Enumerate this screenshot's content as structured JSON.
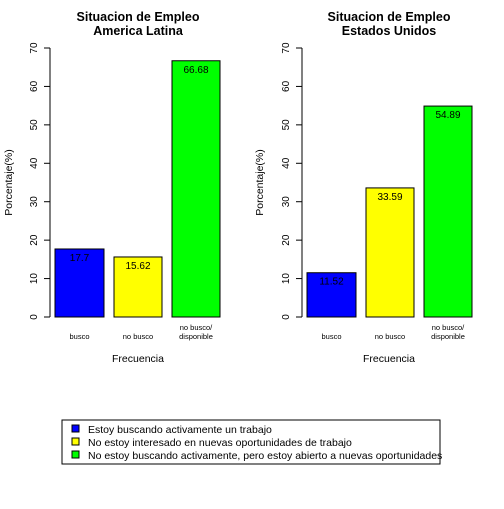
{
  "legend": [
    {
      "label": "Estoy buscando activamente un trabajo",
      "color": "#0000FF"
    },
    {
      "label": "No estoy interesado en nuevas oportunidades de trabajo",
      "color": "#FFFF00"
    },
    {
      "label": "No estoy buscando activamente, pero estoy abierto a nuevas oportunidades",
      "color": "#00FF00"
    }
  ],
  "chart_data": [
    {
      "type": "bar",
      "title": [
        "Situacion de Empleo",
        "America Latina"
      ],
      "xlabel": "Frecuencia",
      "ylabel": "Porcentaje(%)",
      "ylim": [
        0,
        70
      ],
      "yticks": [
        0,
        10,
        20,
        30,
        40,
        50,
        60,
        70
      ],
      "categories": [
        [
          "busco"
        ],
        [
          "no busco"
        ],
        [
          "no busco/",
          "disponible"
        ]
      ],
      "values": [
        17.7,
        15.62,
        66.68
      ],
      "value_labels": [
        "17.7",
        "15.62",
        "66.68"
      ],
      "colors": [
        "#0000FF",
        "#FFFF00",
        "#00FF00"
      ]
    },
    {
      "type": "bar",
      "title": [
        "Situacion de Empleo",
        "Estados Unidos"
      ],
      "xlabel": "Frecuencia",
      "ylabel": "Porcentaje(%)",
      "ylim": [
        0,
        70
      ],
      "yticks": [
        0,
        10,
        20,
        30,
        40,
        50,
        60,
        70
      ],
      "categories": [
        [
          "busco"
        ],
        [
          "no busco"
        ],
        [
          "no busco/",
          "disponible"
        ]
      ],
      "values": [
        11.52,
        33.59,
        54.89
      ],
      "value_labels": [
        "11.52",
        "33.59",
        "54.89"
      ],
      "colors": [
        "#0000FF",
        "#FFFF00",
        "#00FF00"
      ]
    }
  ]
}
